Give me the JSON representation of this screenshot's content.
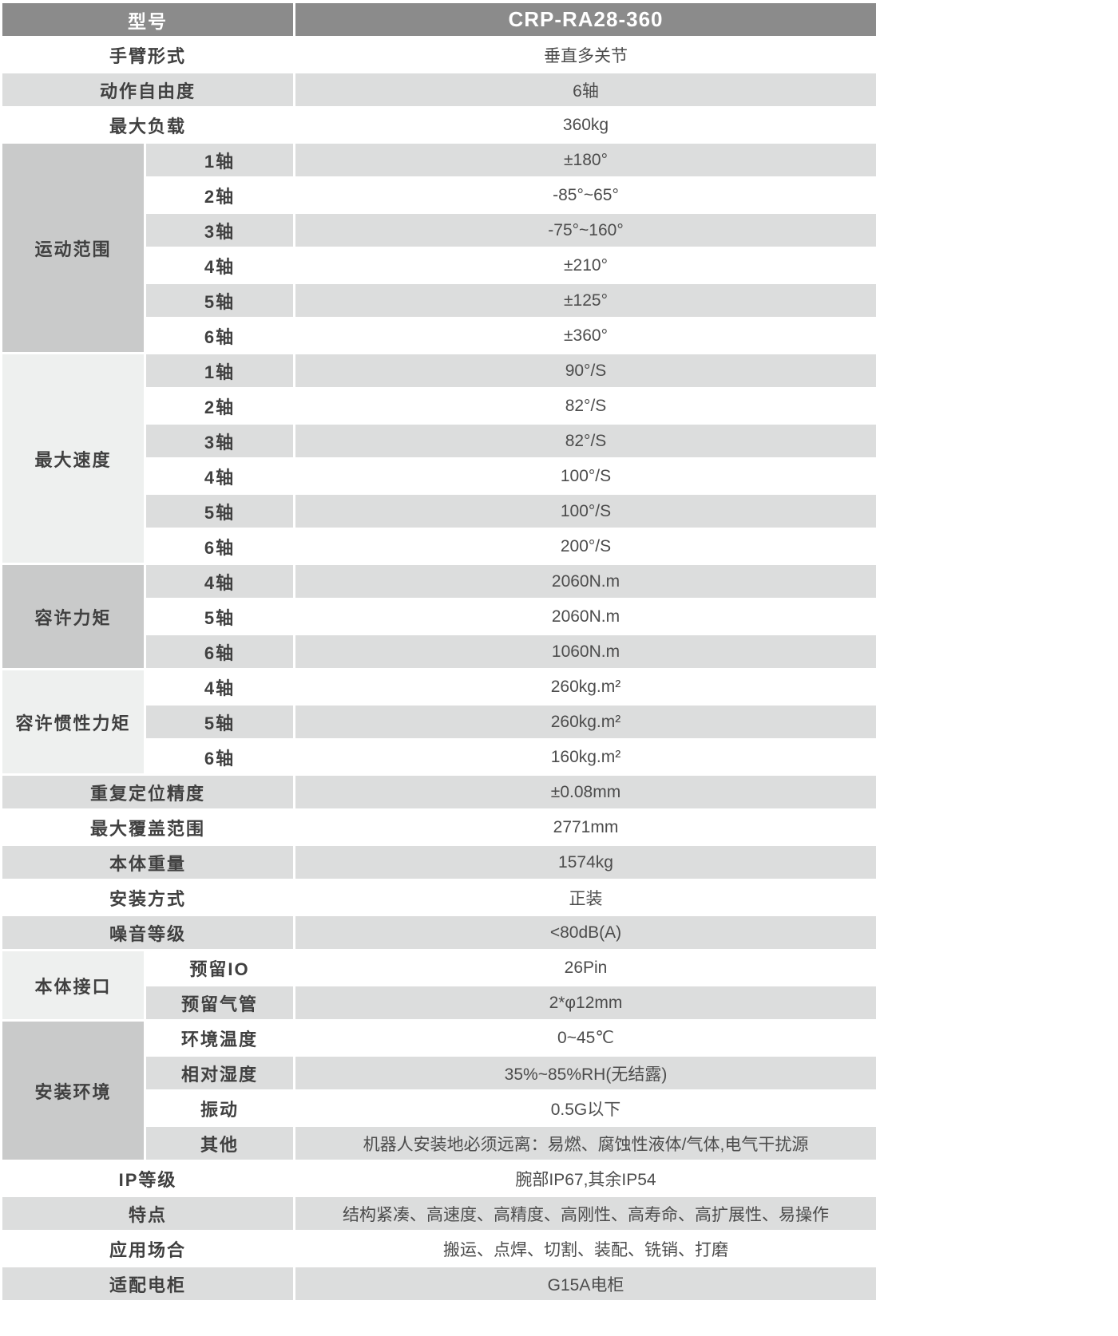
{
  "colors": {
    "header_bg": "#8b8b8b",
    "header_text": "#ffffff",
    "stripe_bg": "#dcdddd",
    "group_dark_bg": "#c9caca",
    "group_light_bg": "#eef0ef",
    "label_text": "#404040",
    "value_text": "#4c4c4c",
    "page_bg": "#ffffff"
  },
  "table": {
    "header": {
      "label": "型号",
      "value": "CRP-RA28-360"
    },
    "sections": [
      {
        "type": "simple",
        "label": "手臂形式",
        "value": "垂直多关节"
      },
      {
        "type": "simple",
        "label": "动作自由度",
        "value": "6轴"
      },
      {
        "type": "simple",
        "label": "最大负载",
        "value": "360kg"
      },
      {
        "type": "group",
        "label": "运动范围",
        "shade": "dark",
        "rows": [
          {
            "sub": "1轴",
            "value": "±180°"
          },
          {
            "sub": "2轴",
            "value": "-85°~65°"
          },
          {
            "sub": "3轴",
            "value": "-75°~160°"
          },
          {
            "sub": "4轴",
            "value": "±210°"
          },
          {
            "sub": "5轴",
            "value": "±125°"
          },
          {
            "sub": "6轴",
            "value": "±360°"
          }
        ]
      },
      {
        "type": "group",
        "label": "最大速度",
        "shade": "light",
        "rows": [
          {
            "sub": "1轴",
            "value": "90°/S"
          },
          {
            "sub": "2轴",
            "value": "82°/S"
          },
          {
            "sub": "3轴",
            "value": "82°/S"
          },
          {
            "sub": "4轴",
            "value": "100°/S"
          },
          {
            "sub": "5轴",
            "value": "100°/S"
          },
          {
            "sub": "6轴",
            "value": "200°/S"
          }
        ]
      },
      {
        "type": "group",
        "label": "容许力矩",
        "shade": "dark",
        "rows": [
          {
            "sub": "4轴",
            "value": "2060N.m"
          },
          {
            "sub": "5轴",
            "value": "2060N.m"
          },
          {
            "sub": "6轴",
            "value": "1060N.m"
          }
        ]
      },
      {
        "type": "group",
        "label": "容许惯性力矩",
        "shade": "light",
        "rows": [
          {
            "sub": "4轴",
            "value": "260kg.m²"
          },
          {
            "sub": "5轴",
            "value": "260kg.m²"
          },
          {
            "sub": "6轴",
            "value": "160kg.m²"
          }
        ]
      },
      {
        "type": "simple",
        "label": "重复定位精度",
        "value": "±0.08mm"
      },
      {
        "type": "simple",
        "label": "最大覆盖范围",
        "value": "2771mm"
      },
      {
        "type": "simple",
        "label": "本体重量",
        "value": "1574kg"
      },
      {
        "type": "simple",
        "label": "安装方式",
        "value": "正装"
      },
      {
        "type": "simple",
        "label": "噪音等级",
        "value": "<80dB(A)"
      },
      {
        "type": "group",
        "label": "本体接口",
        "shade": "light",
        "rows": [
          {
            "sub": "预留IO",
            "value": "26Pin"
          },
          {
            "sub": "预留气管",
            "value": "2*φ12mm"
          }
        ]
      },
      {
        "type": "group",
        "label": "安装环境",
        "shade": "dark",
        "rows": [
          {
            "sub": "环境温度",
            "value": "0~45℃"
          },
          {
            "sub": "相对湿度",
            "value": "35%~85%RH(无结露)"
          },
          {
            "sub": "振动",
            "value": "0.5G以下"
          },
          {
            "sub": "其他",
            "value": "机器人安装地必须远离：易燃、腐蚀性液体/气体,电气干扰源"
          }
        ]
      },
      {
        "type": "simple",
        "label": "IP等级",
        "value": "腕部IP67,其余IP54"
      },
      {
        "type": "simple",
        "label": "特点",
        "value": "结构紧凑、高速度、高精度、高刚性、高寿命、高扩展性、易操作"
      },
      {
        "type": "simple",
        "label": "应用场合",
        "value": "搬运、点焊、切割、装配、铣销、打磨"
      },
      {
        "type": "simple",
        "label": "适配电柜",
        "value": "G15A电柜"
      }
    ]
  }
}
